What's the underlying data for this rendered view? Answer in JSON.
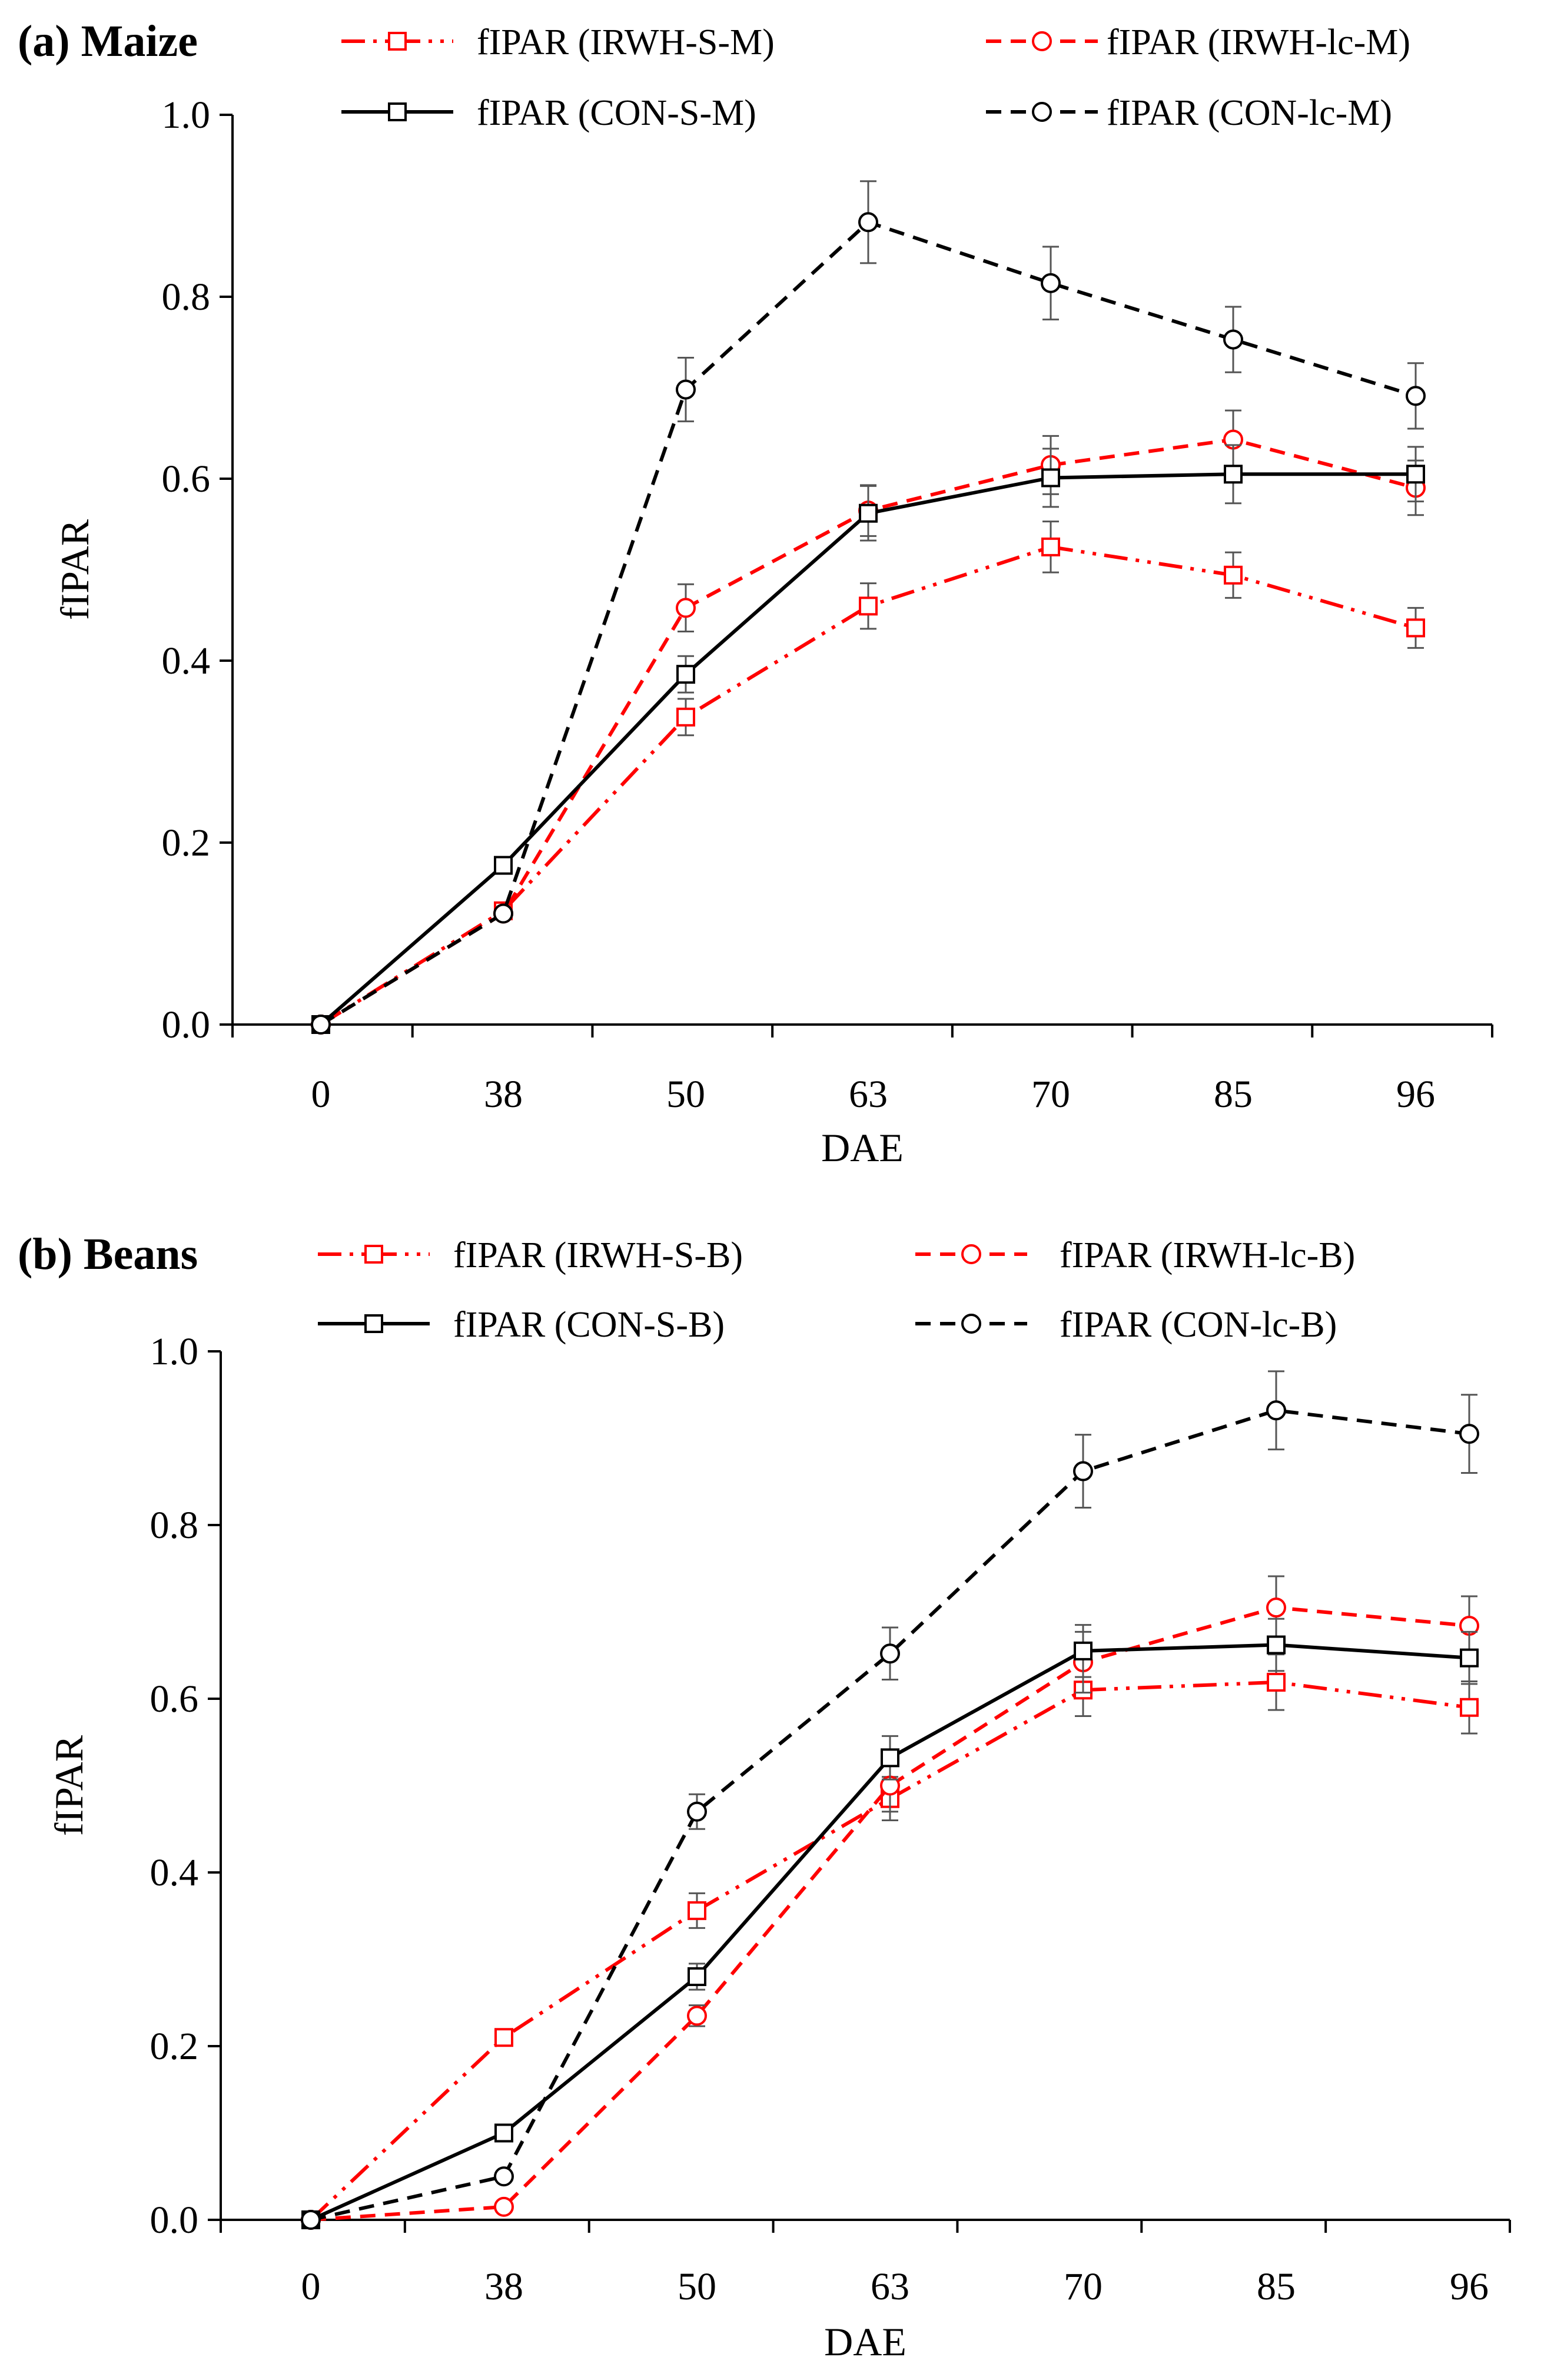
{
  "chart_data": [
    {
      "type": "line",
      "title": "(a) Maize",
      "xlabel": "DAE",
      "ylabel": "fIPAR",
      "categories": [
        "0",
        "38",
        "50",
        "63",
        "70",
        "85",
        "96"
      ],
      "ylim": [
        0,
        1.0
      ],
      "yticks": [
        "0.0",
        "0.2",
        "0.4",
        "0.6",
        "0.8",
        "1.0"
      ],
      "legend_position": "top",
      "series": [
        {
          "name": "fIPAR (IRWH-S-M)",
          "color": "#ff0000",
          "dash": "dashdotdot",
          "marker": "square",
          "values": [
            0.0,
            0.125,
            0.338,
            0.46,
            0.525,
            0.494,
            0.436
          ],
          "errors": [
            0,
            0,
            0.02,
            0.025,
            0.028,
            0.025,
            0.022
          ]
        },
        {
          "name": "fIPAR (IRWH-lc-M)",
          "color": "#ff0000",
          "dash": "dash",
          "marker": "circle",
          "values": [
            0.0,
            0.122,
            0.458,
            0.565,
            0.615,
            0.643,
            0.59
          ],
          "errors": [
            0,
            0,
            0.026,
            0.028,
            0.032,
            0.032,
            0.03
          ]
        },
        {
          "name": "fIPAR (CON-S-M)",
          "color": "#000000",
          "dash": "solid",
          "marker": "square",
          "values": [
            0.0,
            0.175,
            0.385,
            0.562,
            0.601,
            0.605,
            0.605
          ],
          "errors": [
            0,
            0,
            0.02,
            0.03,
            0.032,
            0.032,
            0.03
          ]
        },
        {
          "name": "fIPAR (CON-lc-M)",
          "color": "#000000",
          "dash": "dash",
          "marker": "circle",
          "values": [
            0.0,
            0.122,
            0.698,
            0.882,
            0.815,
            0.753,
            0.691
          ],
          "errors": [
            0,
            0,
            0.035,
            0.045,
            0.04,
            0.036,
            0.036
          ]
        }
      ]
    },
    {
      "type": "line",
      "title": "(b) Beans",
      "xlabel": "DAE",
      "ylabel": "fIPAR",
      "categories": [
        "0",
        "38",
        "50",
        "63",
        "70",
        "85",
        "96"
      ],
      "ylim": [
        0,
        1.0
      ],
      "yticks": [
        "0.0",
        "0.2",
        "0.4",
        "0.6",
        "0.8",
        "1.0"
      ],
      "legend_position": "top",
      "series": [
        {
          "name": "fIPAR (IRWH-S-B)",
          "color": "#ff0000",
          "dash": "dashdotdot",
          "marker": "square",
          "values": [
            0.0,
            0.21,
            0.356,
            0.485,
            0.61,
            0.619,
            0.59
          ],
          "errors": [
            0,
            0,
            0.02,
            0.025,
            0.03,
            0.032,
            0.03
          ]
        },
        {
          "name": "fIPAR (IRWH-lc-B)",
          "color": "#ff0000",
          "dash": "dash",
          "marker": "circle",
          "values": [
            0.0,
            0.015,
            0.235,
            0.5,
            0.642,
            0.705,
            0.684
          ],
          "errors": [
            0,
            0,
            0.012,
            0.03,
            0.035,
            0.036,
            0.034
          ]
        },
        {
          "name": "fIPAR (CON-S-B)",
          "color": "#000000",
          "dash": "solid",
          "marker": "square",
          "values": [
            0.0,
            0.1,
            0.28,
            0.532,
            0.655,
            0.662,
            0.647
          ],
          "errors": [
            0,
            0,
            0.015,
            0.025,
            0.03,
            0.03,
            0.03
          ]
        },
        {
          "name": "fIPAR (CON-lc-B)",
          "color": "#000000",
          "dash": "dash",
          "marker": "circle",
          "values": [
            0.0,
            0.05,
            0.47,
            0.652,
            0.862,
            0.932,
            0.905
          ],
          "errors": [
            0,
            0,
            0.02,
            0.03,
            0.042,
            0.045,
            0.045
          ]
        }
      ]
    }
  ]
}
